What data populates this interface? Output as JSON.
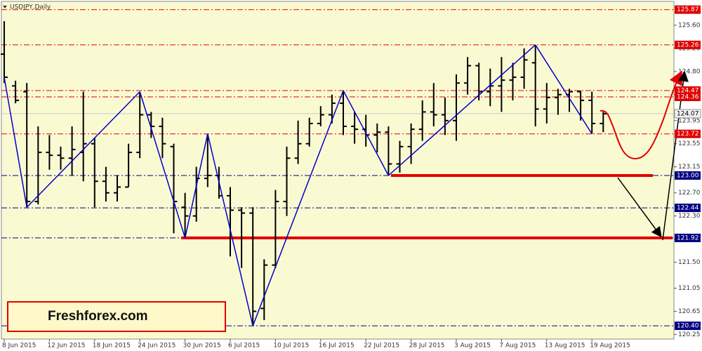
{
  "chart_data": {
    "type": "ohlc",
    "title": "USDJPY,Daily",
    "watermark": "Freshforex.com",
    "categories": [
      "8 Jun 2015",
      null,
      null,
      null,
      "12 Jun 2015",
      null,
      null,
      null,
      "18 Jun 2015",
      null,
      null,
      null,
      "24 Jun 2015",
      null,
      null,
      null,
      "30 Jun 2015",
      null,
      null,
      null,
      "6 Jul 2015",
      null,
      null,
      null,
      "10 Jul 2015",
      null,
      null,
      null,
      "16 Jul 2015",
      null,
      null,
      null,
      "22 Jul 2015",
      null,
      null,
      null,
      "28 Jul 2015",
      null,
      null,
      null,
      "3 Aug 2015",
      null,
      null,
      null,
      "7 Aug 2015",
      null,
      null,
      null,
      "13 Aug 2015",
      null,
      null,
      null,
      "19 Aug 2015",
      null
    ],
    "open": [
      125.1,
      124.55,
      124.45,
      122.55,
      123.4,
      123.35,
      123.3,
      123.4,
      123.55,
      122.9,
      122.7,
      122.8,
      123.4,
      124.05,
      123.85,
      123.5,
      122.45,
      122.3,
      122.95,
      123.0,
      122.65,
      122.4,
      122.35,
      120.7,
      121.45,
      122.55,
      123.3,
      123.55,
      123.9,
      124.05,
      124.25,
      123.85,
      123.8,
      123.7,
      123.75,
      123.2,
      123.5,
      123.8,
      124.1,
      124.05,
      123.95,
      124.6,
      124.9,
      124.45,
      124.55,
      124.65,
      124.7,
      124.95,
      124.15,
      124.35,
      124.4,
      124.45,
      124.3,
      123.9
    ],
    "high": [
      125.67,
      124.64,
      124.6,
      123.85,
      123.7,
      123.5,
      123.85,
      124.45,
      123.65,
      123.15,
      123.0,
      123.55,
      124.45,
      124.1,
      124.0,
      123.55,
      122.7,
      123.15,
      123.72,
      123.15,
      122.8,
      122.45,
      122.45,
      121.55,
      122.75,
      123.5,
      123.95,
      124.0,
      124.2,
      124.4,
      124.47,
      124.1,
      124.05,
      123.9,
      123.85,
      123.6,
      123.9,
      124.3,
      124.6,
      124.35,
      124.75,
      125.05,
      124.95,
      124.85,
      125.05,
      124.95,
      125.2,
      125.26,
      124.6,
      124.5,
      124.5,
      124.47,
      124.45,
      124.1
    ],
    "low": [
      124.6,
      124.25,
      122.45,
      122.5,
      123.1,
      123.1,
      123.0,
      122.9,
      122.45,
      122.55,
      122.55,
      122.8,
      123.3,
      123.65,
      123.3,
      122.0,
      121.92,
      122.2,
      122.8,
      122.6,
      121.6,
      121.4,
      120.4,
      120.5,
      121.4,
      122.3,
      123.2,
      123.5,
      123.85,
      123.9,
      123.7,
      123.55,
      123.5,
      123.4,
      123.0,
      123.05,
      123.2,
      123.6,
      123.85,
      123.7,
      123.6,
      124.4,
      124.3,
      124.2,
      124.1,
      124.3,
      124.5,
      123.85,
      123.9,
      124.05,
      124.1,
      123.95,
      123.72,
      123.75
    ],
    "close": [
      124.7,
      124.3,
      122.55,
      123.4,
      123.35,
      123.3,
      123.45,
      123.55,
      122.9,
      122.7,
      122.8,
      123.4,
      124.05,
      123.85,
      123.55,
      122.55,
      122.3,
      122.95,
      123.0,
      122.65,
      122.4,
      122.35,
      120.65,
      121.45,
      122.55,
      123.3,
      123.55,
      123.9,
      124.05,
      124.25,
      123.85,
      123.8,
      123.7,
      123.75,
      123.2,
      123.5,
      123.8,
      124.1,
      124.05,
      123.95,
      124.6,
      124.9,
      124.45,
      124.55,
      124.65,
      124.7,
      125.0,
      124.15,
      124.35,
      124.4,
      124.45,
      124.3,
      123.9,
      124.07
    ],
    "bar_color": "#000000",
    "zigzag": {
      "color": "#0000cc",
      "values": [
        124.7,
        null,
        122.45,
        null,
        null,
        null,
        null,
        null,
        null,
        null,
        null,
        null,
        124.45,
        null,
        null,
        null,
        121.92,
        null,
        123.72,
        null,
        null,
        null,
        120.4,
        null,
        null,
        null,
        null,
        null,
        null,
        null,
        124.47,
        null,
        null,
        null,
        123.0,
        null,
        null,
        null,
        null,
        null,
        null,
        null,
        null,
        null,
        null,
        null,
        null,
        125.26,
        null,
        null,
        null,
        null,
        123.72,
        null
      ]
    },
    "ylim": [
      120.17,
      126.0
    ],
    "yticks": [
      120.25,
      120.65,
      121.05,
      {
        "value": 121.5,
        "label": "121.50"
      },
      {
        "value": 121.9,
        "label": "121.90"
      },
      {
        "value": 122.3,
        "label": "122.30"
      },
      {
        "value": 122.7,
        "label": "122.70"
      },
      123.15,
      123.55,
      123.95,
      {
        "value": 124.4,
        "label": "124.40"
      },
      {
        "value": 124.8,
        "label": "124.80"
      },
      {
        "value": 125.2,
        "label": "125.20"
      },
      {
        "value": 125.6,
        "label": "125.60"
      }
    ],
    "levels": [
      {
        "value": 125.87,
        "color": "#e00000"
      },
      {
        "value": 125.26,
        "color": "#e00000"
      },
      {
        "value": 124.47,
        "color": "#e00000"
      },
      {
        "value": 124.36,
        "color": "#e00000"
      },
      {
        "value": 124.07,
        "color": "#c8c8c8"
      },
      {
        "value": 123.72,
        "color": "#e00000"
      },
      {
        "value": 123,
        "label": "123.00",
        "color": "#000080"
      },
      {
        "value": 122.44,
        "color": "#000080"
      },
      {
        "value": 121.92,
        "color": "#000080"
      },
      {
        "value": 120.4,
        "label": "120.40",
        "color": "#000080"
      }
    ],
    "support_color": "#e00000"
  }
}
